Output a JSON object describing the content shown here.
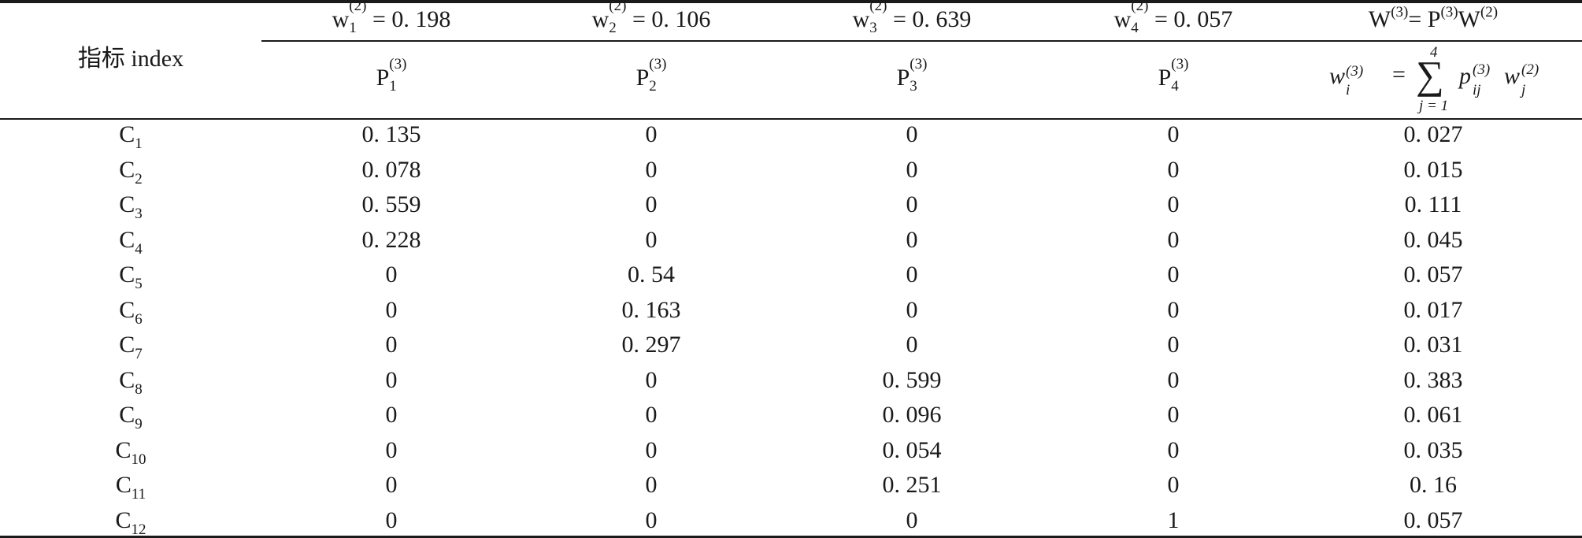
{
  "table": {
    "row_header": "指标 index",
    "weight_headers": [
      {
        "base": "w",
        "sub": "1",
        "sup": "(2)",
        "value": "= 0. 198"
      },
      {
        "base": "w",
        "sub": "2",
        "sup": "(2)",
        "value": "= 0. 106"
      },
      {
        "base": "w",
        "sub": "3",
        "sup": "(2)",
        "value": "= 0. 639"
      },
      {
        "base": "w",
        "sub": "4",
        "sup": "(2)",
        "value": "= 0. 057"
      }
    ],
    "total_header": {
      "a": "W",
      "a_sup": "(3)",
      "eq": "= P",
      "b_sup": "(3)",
      "b": "W",
      "c_sup": "(2)"
    },
    "p_headers": [
      {
        "base": "P",
        "sub": "1",
        "sup": "(3)"
      },
      {
        "base": "P",
        "sub": "2",
        "sup": "(3)"
      },
      {
        "base": "P",
        "sub": "3",
        "sup": "(3)"
      },
      {
        "base": "P",
        "sub": "4",
        "sup": "(3)"
      }
    ],
    "formula": {
      "lhs": "w",
      "lhs_sub": "i",
      "lhs_sup": "(3)",
      "eq": "=",
      "sigma": "∑",
      "upper": "4",
      "lower": "j = 1",
      "p": "p",
      "p_sub": "ij",
      "p_sup": "(3)",
      "w": "w",
      "w_sub": "j",
      "w_sup": "(2)"
    },
    "rows": [
      {
        "label": "C",
        "sub": "1",
        "values": [
          "0. 135",
          "0",
          "0",
          "0",
          "0. 027"
        ]
      },
      {
        "label": "C",
        "sub": "2",
        "values": [
          "0. 078",
          "0",
          "0",
          "0",
          "0. 015"
        ]
      },
      {
        "label": "C",
        "sub": "3",
        "values": [
          "0. 559",
          "0",
          "0",
          "0",
          "0. 111"
        ]
      },
      {
        "label": "C",
        "sub": "4",
        "values": [
          "0. 228",
          "0",
          "0",
          "0",
          "0. 045"
        ]
      },
      {
        "label": "C",
        "sub": "5",
        "values": [
          "0",
          "0. 54",
          "0",
          "0",
          "0. 057"
        ]
      },
      {
        "label": "C",
        "sub": "6",
        "values": [
          "0",
          "0. 163",
          "0",
          "0",
          "0. 017"
        ]
      },
      {
        "label": "C",
        "sub": "7",
        "values": [
          "0",
          "0. 297",
          "0",
          "0",
          "0. 031"
        ]
      },
      {
        "label": "C",
        "sub": "8",
        "values": [
          "0",
          "0",
          "0. 599",
          "0",
          "0. 383"
        ]
      },
      {
        "label": "C",
        "sub": "9",
        "values": [
          "0",
          "0",
          "0. 096",
          "0",
          "0. 061"
        ]
      },
      {
        "label": "C",
        "sub": "10",
        "values": [
          "0",
          "0",
          "0. 054",
          "0",
          "0. 035"
        ]
      },
      {
        "label": "C",
        "sub": "11",
        "values": [
          "0",
          "0",
          "0. 251",
          "0",
          "0. 16"
        ]
      },
      {
        "label": "C",
        "sub": "12",
        "values": [
          "0",
          "0",
          "0",
          "1",
          "0. 057"
        ]
      }
    ]
  }
}
